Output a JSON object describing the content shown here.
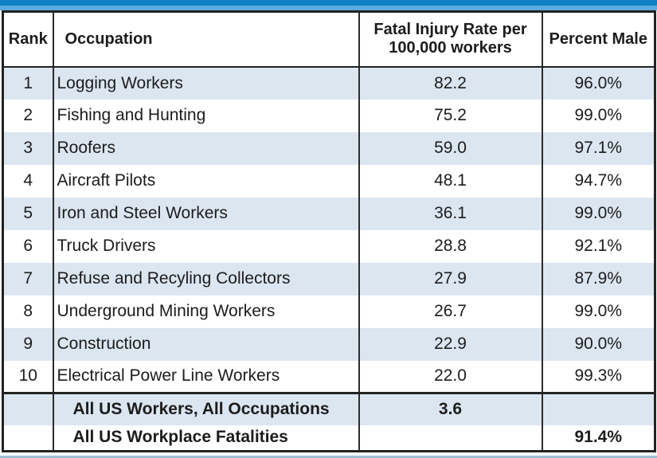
{
  "colors": {
    "banner_dark": "#0f80c2",
    "banner_light": "#58abdc",
    "row_alt": "#dce6f1",
    "footer_strip": "#9dc0d8"
  },
  "chart_data": {
    "type": "table",
    "columns": [
      {
        "key": "rank",
        "label": "Rank"
      },
      {
        "key": "occupation",
        "label": "Occupation"
      },
      {
        "key": "rate",
        "label": "Fatal Injury Rate per\n100,000 workers"
      },
      {
        "key": "percent_male",
        "label": "Percent Male"
      }
    ],
    "rows": [
      {
        "rank": "1",
        "occupation": "Logging Workers",
        "rate": "82.2",
        "percent_male": "96.0%"
      },
      {
        "rank": "2",
        "occupation": "Fishing and Hunting",
        "rate": "75.2",
        "percent_male": "99.0%"
      },
      {
        "rank": "3",
        "occupation": "Roofers",
        "rate": "59.0",
        "percent_male": "97.1%"
      },
      {
        "rank": "4",
        "occupation": "Aircraft Pilots",
        "rate": "48.1",
        "percent_male": "94.7%"
      },
      {
        "rank": "5",
        "occupation": "Iron and Steel Workers",
        "rate": "36.1",
        "percent_male": "99.0%"
      },
      {
        "rank": "6",
        "occupation": "Truck Drivers",
        "rate": "28.8",
        "percent_male": "92.1%"
      },
      {
        "rank": "7",
        "occupation": "Refuse and Recyling Collectors",
        "rate": "27.9",
        "percent_male": "87.9%"
      },
      {
        "rank": "8",
        "occupation": "Underground Mining Workers",
        "rate": "26.7",
        "percent_male": "99.0%"
      },
      {
        "rank": "9",
        "occupation": "Construction",
        "rate": "22.9",
        "percent_male": "90.0%"
      },
      {
        "rank": "10",
        "occupation": "Electrical Power Line Workers",
        "rate": "22.0",
        "percent_male": "99.3%"
      }
    ],
    "summary_rows": [
      {
        "rank": "",
        "occupation": "All US Workers, All Occupations",
        "rate": "3.6",
        "percent_male": ""
      },
      {
        "rank": "",
        "occupation": "All US Workplace Fatalities",
        "rate": "",
        "percent_male": "91.4%"
      }
    ]
  }
}
